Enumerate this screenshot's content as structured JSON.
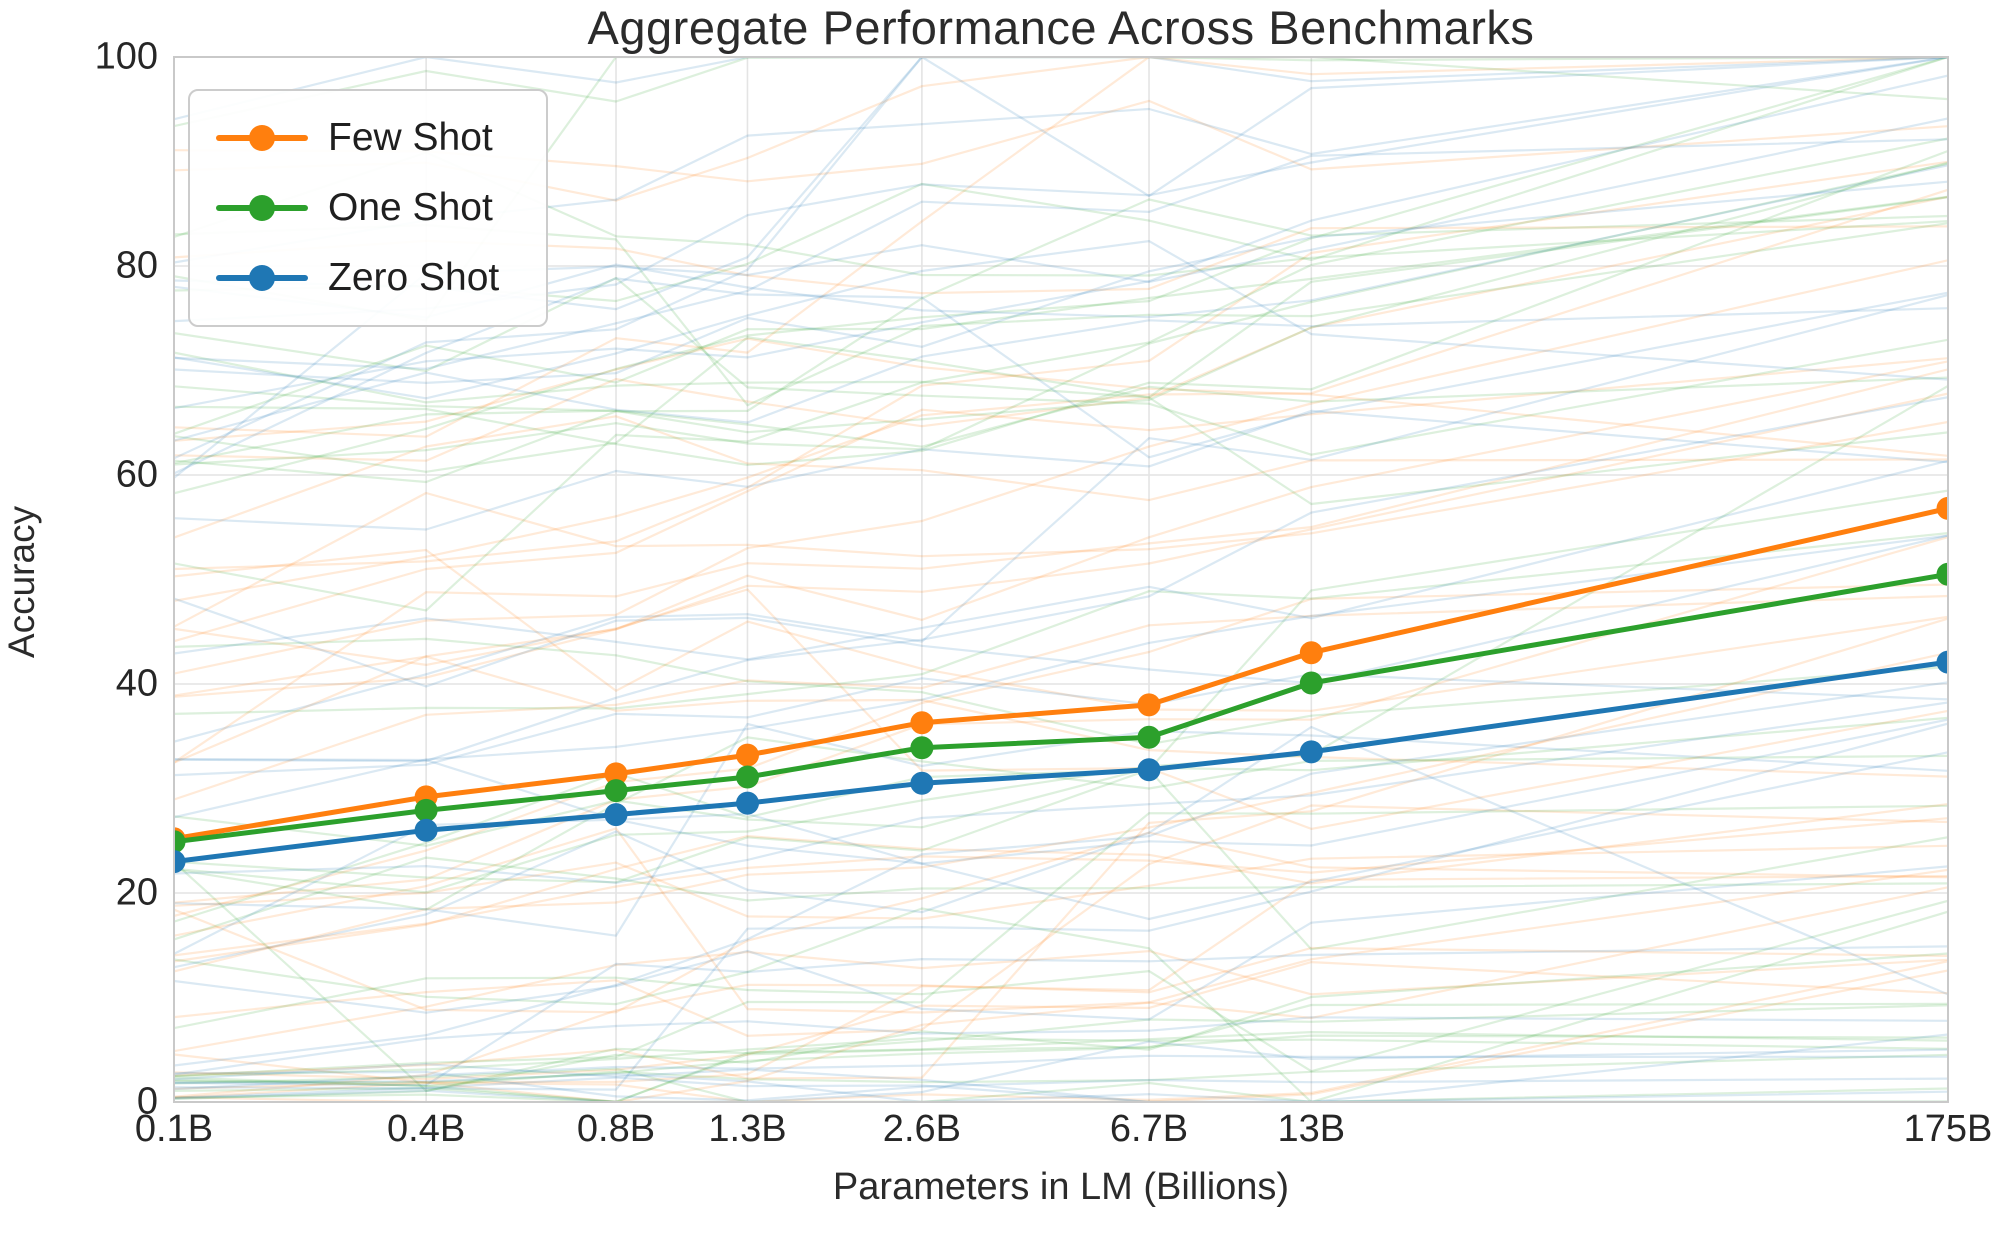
{
  "chart_data": {
    "type": "line",
    "title": "Aggregate Performance Across Benchmarks",
    "xlabel": "Parameters in LM (Billions)",
    "ylabel": "Accuracy",
    "x_scale": "log",
    "x_tick_labels": [
      "0.1B",
      "0.4B",
      "0.8B",
      "1.3B",
      "2.6B",
      "6.7B",
      "13B",
      "175B"
    ],
    "x_values_billions": [
      0.125,
      0.35,
      0.76,
      1.3,
      2.65,
      6.7,
      13,
      175
    ],
    "y_ticks": [
      0,
      20,
      40,
      60,
      80,
      100
    ],
    "ylim": [
      0,
      100
    ],
    "grid": true,
    "legend_position": "upper left",
    "series": [
      {
        "name": "Few Shot",
        "color": "#ff7f0e",
        "values": [
          25.2,
          29.2,
          31.4,
          33.2,
          36.3,
          38.0,
          43.0,
          56.8
        ]
      },
      {
        "name": "One Shot",
        "color": "#2ca02c",
        "values": [
          24.9,
          27.9,
          29.8,
          31.1,
          33.9,
          34.9,
          40.1,
          50.5
        ]
      },
      {
        "name": "Zero Shot",
        "color": "#1f77b4",
        "values": [
          23.0,
          26.0,
          27.5,
          28.6,
          30.5,
          31.8,
          33.5,
          42.1
        ]
      }
    ],
    "background_lines": {
      "description": "faint individual benchmark trajectories, one set per shot setting",
      "per_series": 36,
      "opacity": 0.16,
      "seed": 42
    },
    "colors": {
      "grid": "#e4e4e4",
      "spine": "#c9c9c9",
      "text": "#262626"
    }
  }
}
